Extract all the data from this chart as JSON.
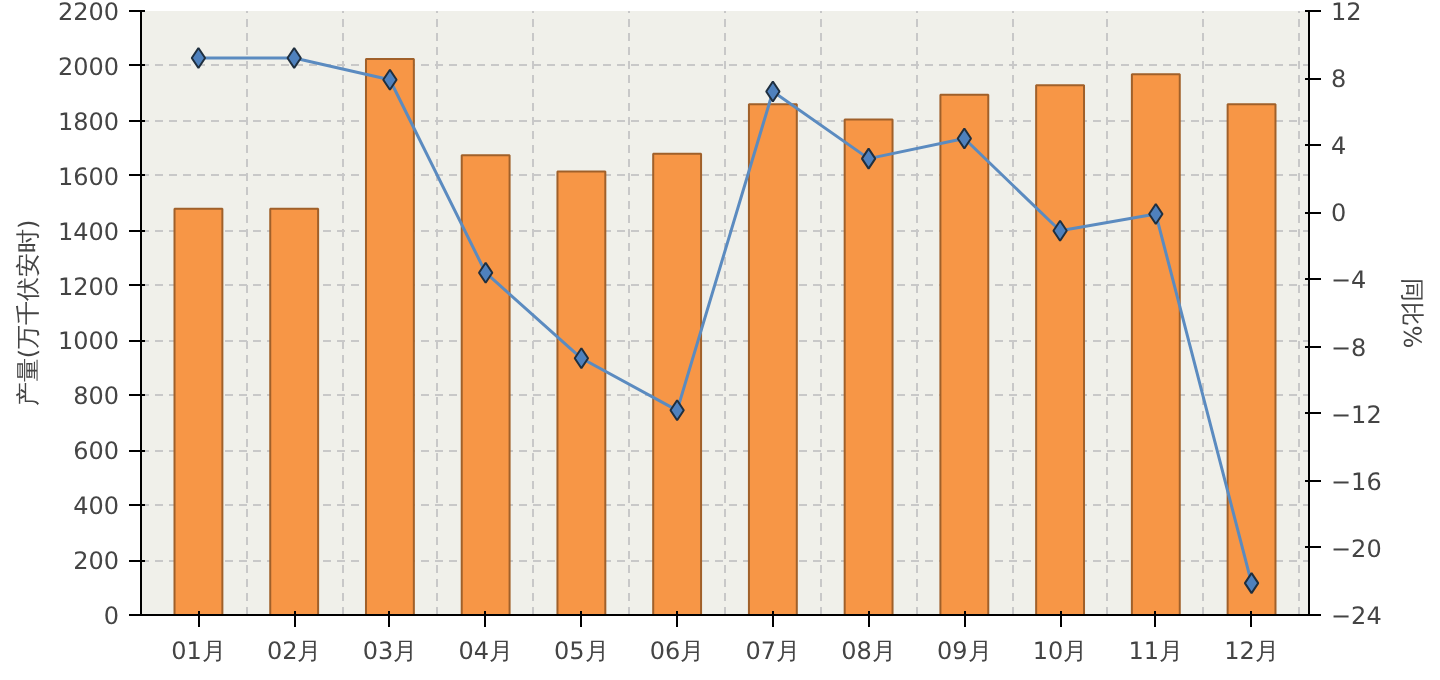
{
  "chart_data": {
    "type": "bar",
    "categories": [
      "01月",
      "02月",
      "03月",
      "04月",
      "05月",
      "06月",
      "07月",
      "08月",
      "09月",
      "10月",
      "11月",
      "12月"
    ],
    "series": [
      {
        "color": "#f79646",
        "values": [
          1480,
          1480,
          2025,
          1675,
          1615,
          1680,
          1860,
          1805,
          1895,
          1930,
          1970,
          1860
        ]
      },
      {
        "type": "line",
        "axis": "y2",
        "color": "#5b8bc0",
        "marker": "diamond",
        "values": [
          9.2,
          9.2,
          7.9,
          -3.6,
          -8.7,
          -11.8,
          7.2,
          3.2,
          4.4,
          -1.1,
          -0.1,
          -22.1
        ]
      }
    ],
    "ylabel": "产量(万千伏安时)",
    "y2label": "同比%",
    "ylim": [
      0,
      2200
    ],
    "yticks": [
      0,
      200,
      400,
      600,
      800,
      1000,
      1200,
      1400,
      1600,
      1800,
      2000,
      2200
    ],
    "y2lim": [
      -24,
      12
    ],
    "y2ticks": [
      -24,
      -20,
      -16,
      -12,
      -8,
      -4,
      0,
      4,
      8,
      12
    ],
    "grid": true
  }
}
